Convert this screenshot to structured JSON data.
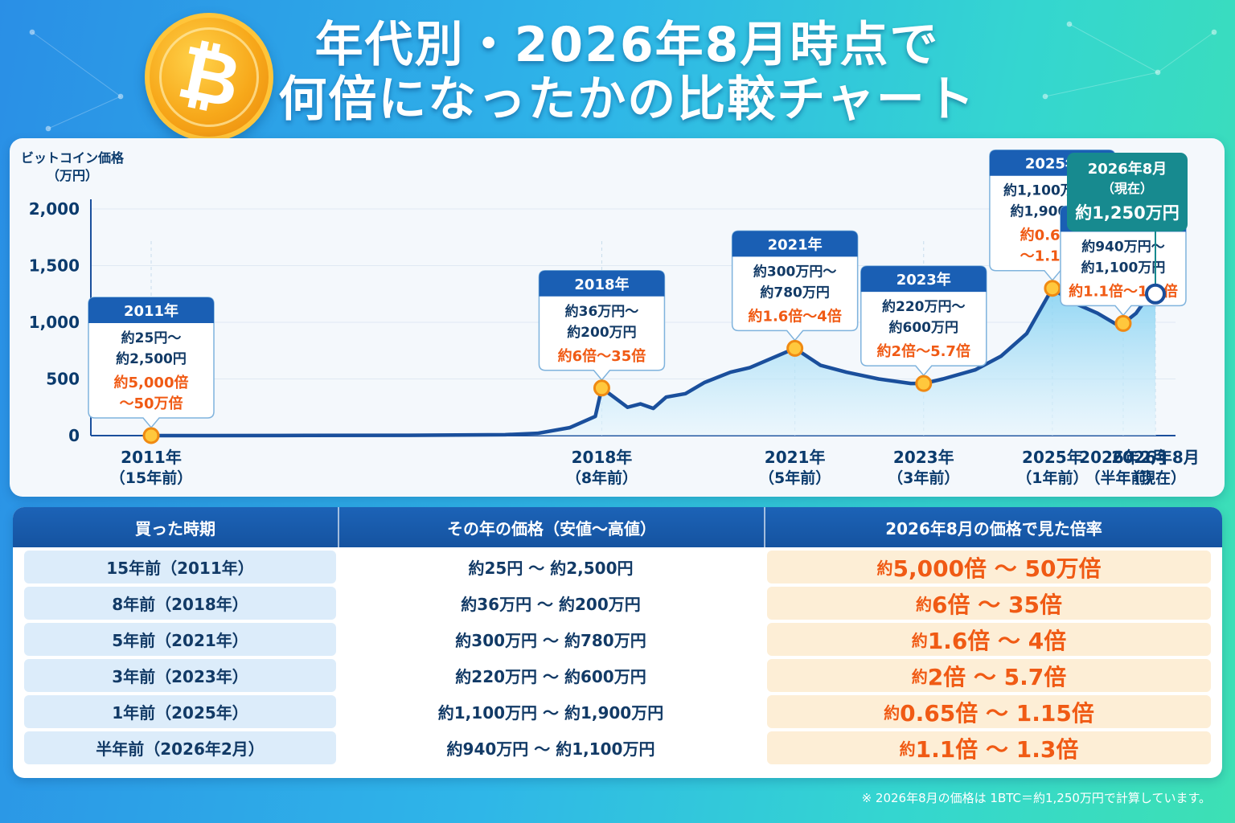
{
  "title": {
    "line1": "年代別・2026年8月時点で",
    "line2": "何倍になったかの比較チャート",
    "coin_symbol": "₿"
  },
  "colors": {
    "coin": "#f7a81a",
    "line": "#1a4f9c",
    "area": "#7fd0f2",
    "header_blue": "#1a5fb4",
    "highlight": "#f05a14",
    "current_teal": "#178a8f"
  },
  "chart_data": {
    "type": "area",
    "ylabel": "ビットコイン価格\n（万円）",
    "ylim": [
      0,
      2000
    ],
    "yticks": [
      0,
      500,
      1000,
      1500,
      2000
    ],
    "ytick_labels": [
      "0",
      "500",
      "1,000",
      "1,500",
      "2,000"
    ],
    "xlim": [
      2011.0,
      2026.6
    ],
    "grid": true,
    "series": [
      {
        "values": [
          [
            2011.0,
            0
          ],
          [
            2013.0,
            1
          ],
          [
            2015.0,
            3
          ],
          [
            2016.5,
            8
          ],
          [
            2017.0,
            20
          ],
          [
            2017.5,
            70
          ],
          [
            2017.9,
            170
          ],
          [
            2018.0,
            420
          ],
          [
            2018.4,
            250
          ],
          [
            2018.6,
            280
          ],
          [
            2018.8,
            240
          ],
          [
            2019.0,
            340
          ],
          [
            2019.3,
            370
          ],
          [
            2019.6,
            470
          ],
          [
            2020.0,
            560
          ],
          [
            2020.3,
            600
          ],
          [
            2021.0,
            770
          ],
          [
            2021.4,
            620
          ],
          [
            2021.8,
            560
          ],
          [
            2022.3,
            500
          ],
          [
            2022.8,
            460
          ],
          [
            2023.0,
            460
          ],
          [
            2023.3,
            500
          ],
          [
            2023.8,
            580
          ],
          [
            2024.2,
            700
          ],
          [
            2024.6,
            900
          ],
          [
            2025.0,
            1300
          ],
          [
            2025.3,
            1180
          ],
          [
            2025.7,
            1080
          ],
          [
            2026.0,
            980
          ],
          [
            2026.1,
            990
          ],
          [
            2026.3,
            1080
          ],
          [
            2026.45,
            1200
          ],
          [
            2026.6,
            1250
          ]
        ]
      }
    ],
    "x_ticks": [
      {
        "x": 2011.0,
        "label": "2011年",
        "sub": "（15年前）"
      },
      {
        "x": 2018.0,
        "label": "2018年",
        "sub": "（8年前）"
      },
      {
        "x": 2021.0,
        "label": "2021年",
        "sub": "（5年前）"
      },
      {
        "x": 2023.0,
        "label": "2023年",
        "sub": "（3年前）"
      },
      {
        "x": 2025.0,
        "label": "2025年",
        "sub": "（1年前）"
      },
      {
        "x": 2026.1,
        "label": "2026年2月",
        "sub": "（半年前）"
      },
      {
        "x": 2026.6,
        "label": "2026年8月",
        "sub": "（現在）"
      }
    ],
    "markers": [
      {
        "x": 2011.0,
        "y": 0,
        "year": "2011年",
        "range1": "約25円〜",
        "range2": "約2,500円",
        "mult1": "約5,000倍",
        "mult2": "〜50万倍"
      },
      {
        "x": 2018.0,
        "y": 420,
        "year": "2018年",
        "range1": "約36万円〜",
        "range2": "約200万円",
        "mult1": "約6倍〜35倍",
        "mult2": ""
      },
      {
        "x": 2021.0,
        "y": 770,
        "year": "2021年",
        "range1": "約300万円〜",
        "range2": "約780万円",
        "mult1": "約1.6倍〜4倍",
        "mult2": ""
      },
      {
        "x": 2023.0,
        "y": 460,
        "year": "2023年",
        "range1": "約220万円〜",
        "range2": "約600万円",
        "mult1": "約2倍〜5.7倍",
        "mult2": ""
      },
      {
        "x": 2025.0,
        "y": 1300,
        "year": "2025年",
        "range1": "約1,100万円〜",
        "range2": "約1,900万円",
        "mult1": "約0.65倍",
        "mult2": "〜1.15倍"
      },
      {
        "x": 2026.1,
        "y": 990,
        "year": "2026年2月",
        "range1": "約940万円〜",
        "range2": "約1,100万円",
        "mult1": "約1.1倍〜1.3倍",
        "mult2": ""
      }
    ],
    "current": {
      "x": 2026.6,
      "y": 1250,
      "year": "2026年8月",
      "sub": "（現在）",
      "price": "約1,250万円"
    }
  },
  "table": {
    "headers": [
      "買った時期",
      "その年の価格（安値〜高値）",
      "2026年8月の価格で見た倍率"
    ],
    "rows": [
      {
        "period": "15年前（2011年）",
        "price": "約25円 〜 約2,500円",
        "mult_pre": "約",
        "mult_body": "5,000倍 〜 50万倍"
      },
      {
        "period": "8年前（2018年）",
        "price": "約36万円 〜 約200万円",
        "mult_pre": "約",
        "mult_body": "6倍 〜 35倍"
      },
      {
        "period": "5年前（2021年）",
        "price": "約300万円 〜 約780万円",
        "mult_pre": "約",
        "mult_body": "1.6倍 〜 4倍"
      },
      {
        "period": "3年前（2023年）",
        "price": "約220万円 〜 約600万円",
        "mult_pre": "約",
        "mult_body": "2倍 〜 5.7倍"
      },
      {
        "period": "1年前（2025年）",
        "price": "約1,100万円 〜 約1,900万円",
        "mult_pre": "約",
        "mult_body": "0.65倍 〜 1.15倍"
      },
      {
        "period": "半年前（2026年2月）",
        "price": "約940万円 〜 約1,100万円",
        "mult_pre": "約",
        "mult_body": "1.1倍 〜 1.3倍"
      }
    ]
  },
  "footnote": "※ 2026年8月の価格は 1BTC＝約1,250万円で計算しています。"
}
